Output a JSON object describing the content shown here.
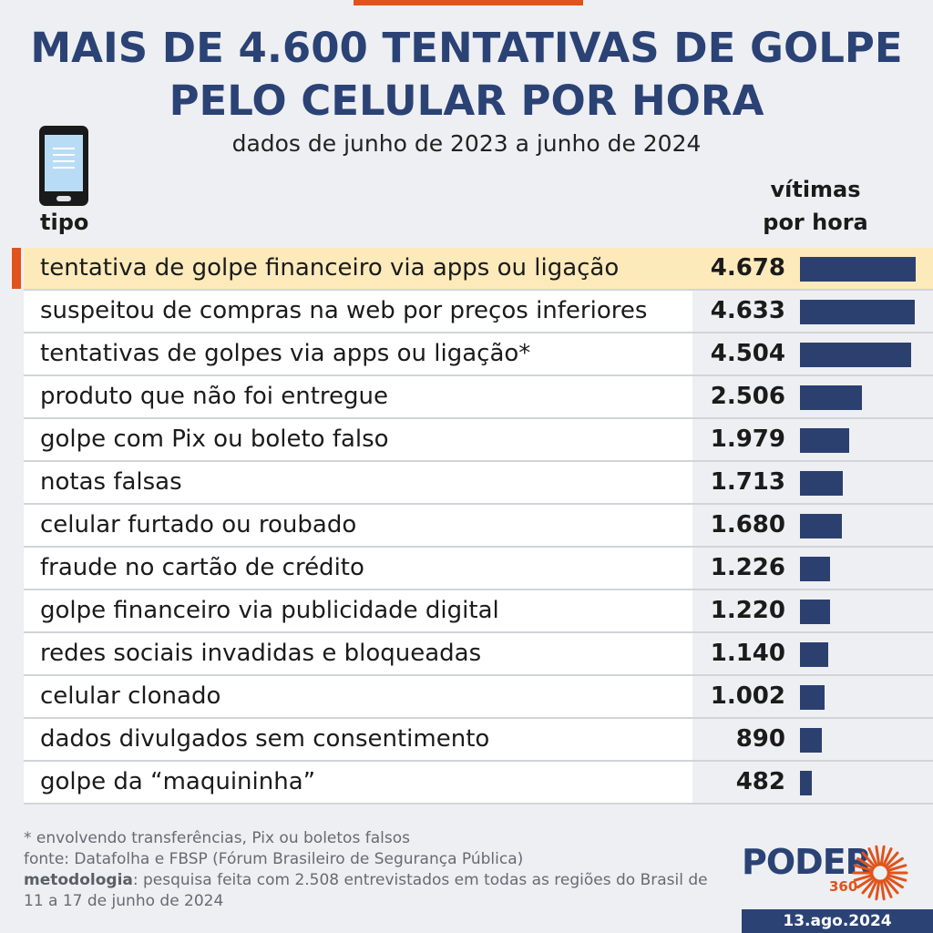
{
  "header": {
    "title_line1": "MAIS DE 4.600 TENTATIVAS DE GOLPE",
    "title_line2": "PELO CELULAR POR HORA",
    "subtitle": "dados de junho de 2023 a junho de 2024"
  },
  "columns": {
    "tipo": "tipo",
    "vitimas_line1": "vítimas",
    "vitimas_line2": "por hora"
  },
  "chart_data": {
    "type": "bar",
    "orientation": "horizontal",
    "title": "MAIS DE 4.600 TENTATIVAS DE GOLPE PELO CELULAR POR HORA",
    "subtitle": "dados de junho de 2023 a junho de 2024",
    "xlabel": "vítimas por hora",
    "ylabel": "tipo",
    "xlim": [
      0,
      4678
    ],
    "grid": false,
    "highlight_index": 0,
    "categories": [
      "tentativa de golpe financeiro via apps ou ligação",
      "suspeitou de compras na web por preços inferiores",
      "tentativas de golpes via apps ou ligação*",
      "produto que não foi entregue",
      "golpe com Pix ou boleto falso",
      "notas falsas",
      "celular furtado ou roubado",
      "fraude no cartão de crédito",
      "golpe financeiro via publicidade digital",
      "redes sociais invadidas e bloqueadas",
      "celular clonado",
      "dados divulgados sem consentimento",
      "golpe da “maquininha”"
    ],
    "values": [
      4678,
      4633,
      4504,
      2506,
      1979,
      1713,
      1680,
      1226,
      1220,
      1140,
      1002,
      890,
      482
    ],
    "value_labels": [
      "4.678",
      "4.633",
      "4.504",
      "2.506",
      "1.979",
      "1.713",
      "1.680",
      "1.226",
      "1.220",
      "1.140",
      "1.002",
      "890",
      "482"
    ]
  },
  "footer": {
    "note": "* envolvendo transferências, Pix ou boletos falsos",
    "source": "fonte: Datafolha e FBSP (Fórum Brasileiro de Segurança Pública)",
    "method_label": "metodologia",
    "method_text": ": pesquisa feita com 2.508 entrevistados em todas as regiões do Brasil de 11 a 17 de junho de 2024"
  },
  "brand": {
    "name": "PODER",
    "sub": "360",
    "date": "13.ago.2024"
  },
  "colors": {
    "title": "#2b4275",
    "bar": "#2c4070",
    "highlight_row": "#fdeabb",
    "accent": "#e0531c"
  },
  "icons": [
    "smartphone-icon",
    "sun-logo-icon"
  ]
}
